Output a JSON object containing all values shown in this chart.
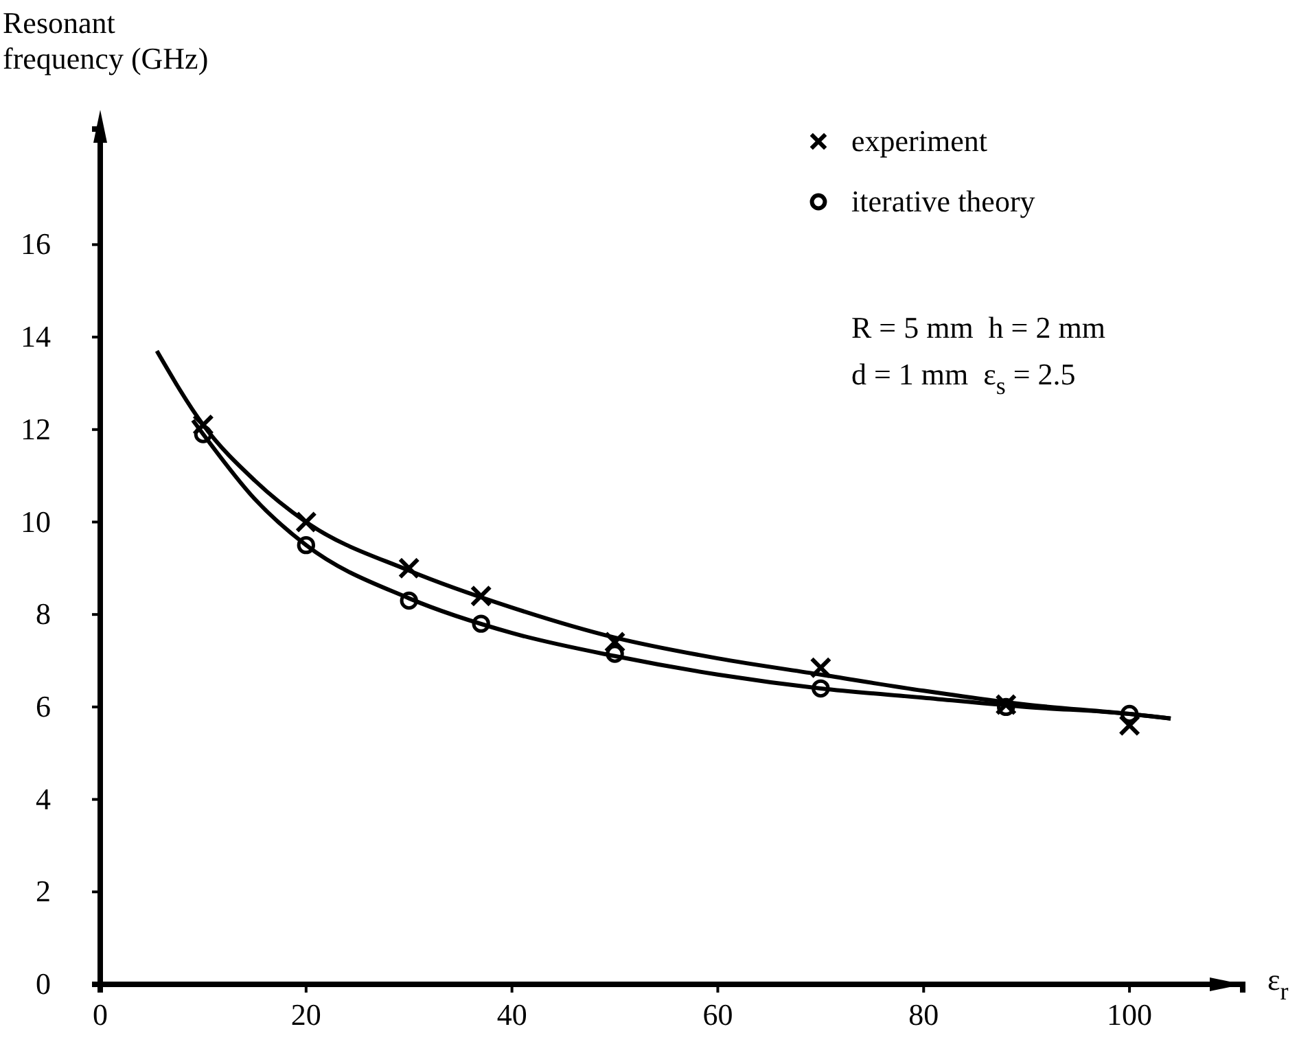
{
  "chart_data": {
    "type": "scatter",
    "ylabel": "Resonant\nfrequency (GHz)",
    "xlabel": "ε$_{r}$",
    "xlim": [
      0,
      111
    ],
    "ylim": [
      0,
      18.5
    ],
    "xticks": [
      0,
      20,
      40,
      60,
      80,
      100
    ],
    "yticks": [
      0,
      2,
      4,
      6,
      8,
      10,
      12,
      14,
      16
    ],
    "grid": false,
    "legend": "top right",
    "annotations": [
      "R = 5 mm  h = 2 mm",
      "d = 1 mm  ε$_{s}$ = 2.5"
    ],
    "series": [
      {
        "type": "line",
        "marker": "none",
        "line_style": "solid",
        "color": "#000000",
        "x": [
          5.5,
          10,
          15,
          20,
          30,
          40,
          50,
          60,
          70,
          80,
          90,
          100,
          104
        ],
        "values": [
          13.7,
          12.1,
          10.9,
          10.0,
          8.95,
          8.15,
          7.5,
          7.05,
          6.7,
          6.35,
          6.05,
          5.85,
          5.75
        ]
      },
      {
        "type": "line",
        "marker": "none",
        "line_style": "solid",
        "color": "#000000",
        "x": [
          9,
          10,
          15,
          20,
          30,
          40,
          50,
          60,
          70,
          80,
          90,
          100,
          104
        ],
        "values": [
          12.2,
          11.9,
          10.5,
          9.5,
          8.35,
          7.6,
          7.1,
          6.7,
          6.4,
          6.2,
          6.0,
          5.85,
          5.75
        ]
      },
      {
        "name": "experiment",
        "marker": "cross",
        "color": "#000000",
        "x": [
          10,
          20,
          30,
          37,
          50,
          70,
          88,
          100
        ],
        "values": [
          12.1,
          10.0,
          9.0,
          8.4,
          7.4,
          6.85,
          6.05,
          5.6
        ]
      },
      {
        "name": "iterative theory",
        "marker": "circle",
        "color": "#000000",
        "x": [
          10,
          20,
          30,
          37,
          50,
          70,
          88,
          100
        ],
        "values": [
          11.9,
          9.5,
          8.3,
          7.8,
          7.15,
          6.4,
          6.0,
          5.85
        ]
      }
    ]
  }
}
